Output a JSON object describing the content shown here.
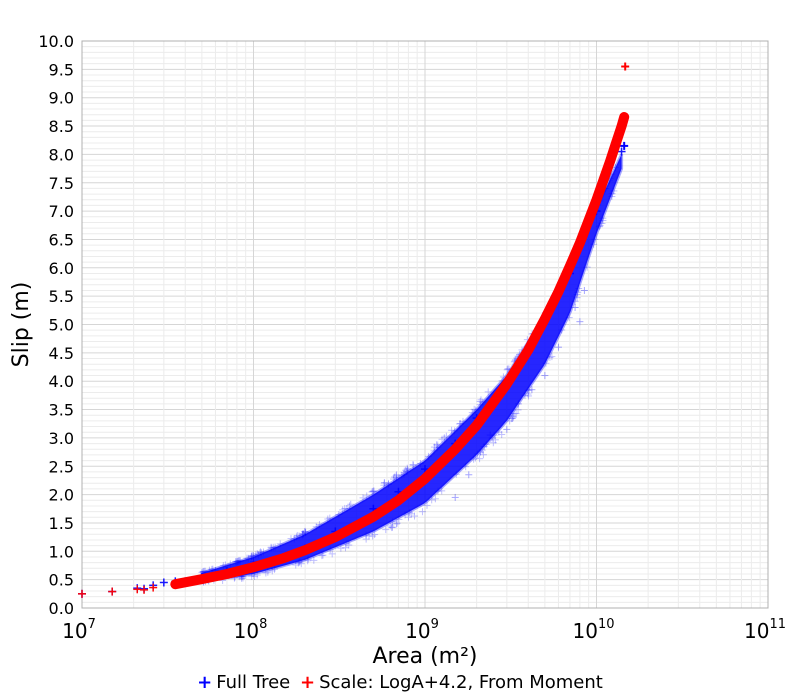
{
  "chart_data": {
    "type": "scatter",
    "title": "",
    "xlabel": "Area (m²)",
    "ylabel": "Slip (m)",
    "xscale": "log",
    "xlim": [
      10000000,
      100000000000
    ],
    "ylim": [
      0.0,
      10.0
    ],
    "x_tick_labels": [
      {
        "base": "10",
        "exp": "7"
      },
      {
        "base": "10",
        "exp": "8"
      },
      {
        "base": "10",
        "exp": "9"
      },
      {
        "base": "10",
        "exp": "10"
      },
      {
        "base": "10",
        "exp": "11"
      }
    ],
    "y_tick_labels": [
      "0.0",
      "0.5",
      "1.0",
      "1.5",
      "2.0",
      "2.5",
      "3.0",
      "3.5",
      "4.0",
      "4.5",
      "5.0",
      "5.5",
      "6.0",
      "6.5",
      "7.0",
      "7.5",
      "8.0",
      "8.5",
      "9.0",
      "9.5",
      "10.0"
    ],
    "grid": true,
    "legend_position": "bottom",
    "series": [
      {
        "name": "Full Tree",
        "marker": "+",
        "color": "#0000ff",
        "points": [
          [
            10000000,
            0.25
          ],
          [
            15000000,
            0.29
          ],
          [
            21000000,
            0.35
          ],
          [
            23000000,
            0.34
          ],
          [
            26000000,
            0.4
          ],
          [
            30000000,
            0.45
          ],
          [
            35000000,
            0.47
          ],
          [
            40000000,
            0.47
          ],
          [
            50000000,
            0.55
          ],
          [
            70000000,
            0.65
          ],
          [
            100000000,
            0.75
          ],
          [
            200000000,
            1.05
          ],
          [
            300000000,
            1.35
          ],
          [
            500000000,
            1.75
          ],
          [
            700000000,
            2.05
          ],
          [
            1000000000,
            2.45
          ],
          [
            1500000000,
            2.9
          ],
          [
            2000000000,
            3.35
          ],
          [
            3000000000,
            4.0
          ],
          [
            4000000000,
            4.6
          ],
          [
            5000000000,
            5.1
          ],
          [
            7000000000,
            5.9
          ],
          [
            10000000000,
            7.0
          ],
          [
            14000000000,
            8.05
          ]
        ],
        "band_upper": [
          [
            50000000,
            0.62
          ],
          [
            100000000,
            0.9
          ],
          [
            200000000,
            1.3
          ],
          [
            500000000,
            2.0
          ],
          [
            1000000000,
            2.6
          ],
          [
            2000000000,
            3.5
          ],
          [
            3000000000,
            4.1
          ],
          [
            5000000000,
            5.15
          ],
          [
            7000000000,
            5.95
          ],
          [
            10000000000,
            7.05
          ],
          [
            14000000000,
            8.0
          ]
        ],
        "band_lower": [
          [
            50000000,
            0.47
          ],
          [
            100000000,
            0.6
          ],
          [
            200000000,
            0.85
          ],
          [
            500000000,
            1.35
          ],
          [
            1000000000,
            1.85
          ],
          [
            2000000000,
            2.7
          ],
          [
            3000000000,
            3.3
          ],
          [
            5000000000,
            4.3
          ],
          [
            7000000000,
            5.2
          ],
          [
            10000000000,
            6.6
          ],
          [
            14000000000,
            7.75
          ]
        ],
        "outliers": [
          [
            60000000,
            0.66
          ],
          [
            100000000,
            0.82
          ],
          [
            140000000,
            0.85
          ],
          [
            1500000000,
            1.95
          ],
          [
            1800000000,
            2.35
          ],
          [
            2100000000,
            2.75
          ],
          [
            2400000000,
            3.05
          ],
          [
            3000000000,
            3.15
          ],
          [
            3500000000,
            3.6
          ],
          [
            4200000000,
            3.85
          ],
          [
            5000000000,
            4.1
          ],
          [
            6000000000,
            4.6
          ],
          [
            7500000000,
            5.3
          ],
          [
            8000000000,
            5.05
          ],
          [
            8500000000,
            5.6
          ]
        ],
        "marked_points": [
          [
            14500000000,
            8.15
          ]
        ]
      },
      {
        "name": "Scale: LogA+4.2, From Moment",
        "marker": "+",
        "color": "#ff0000",
        "points": [
          [
            10000000,
            0.25
          ],
          [
            15000000,
            0.29
          ],
          [
            21000000,
            0.33
          ],
          [
            23000000,
            0.32
          ],
          [
            26000000,
            0.36
          ],
          [
            35000000,
            0.42
          ],
          [
            50000000,
            0.51
          ],
          [
            70000000,
            0.6
          ],
          [
            100000000,
            0.72
          ],
          [
            150000000,
            0.88
          ],
          [
            200000000,
            1.02
          ],
          [
            300000000,
            1.25
          ],
          [
            500000000,
            1.61
          ],
          [
            700000000,
            1.9
          ],
          [
            1000000000,
            2.28
          ],
          [
            1500000000,
            2.8
          ],
          [
            2000000000,
            3.22
          ],
          [
            3000000000,
            3.95
          ],
          [
            4000000000,
            4.55
          ],
          [
            5000000000,
            5.1
          ],
          [
            6000000000,
            5.58
          ],
          [
            7000000000,
            6.03
          ],
          [
            8000000000,
            6.44
          ],
          [
            10000000000,
            7.2
          ],
          [
            12000000000,
            7.88
          ],
          [
            13000000000,
            8.2
          ],
          [
            14000000000,
            8.5
          ],
          [
            14500000000,
            8.66
          ]
        ],
        "marked_points": [
          [
            14700000000,
            9.55
          ]
        ]
      }
    ]
  }
}
